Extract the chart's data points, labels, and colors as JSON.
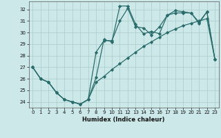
{
  "title": "",
  "xlabel": "Humidex (Indice chaleur)",
  "background_color": "#cde8e8",
  "grid_color": "#aacccc",
  "line_color": "#2a6b6b",
  "x": [
    0,
    1,
    2,
    3,
    4,
    5,
    6,
    7,
    8,
    9,
    10,
    11,
    12,
    13,
    14,
    15,
    16,
    17,
    18,
    19,
    20,
    21,
    22,
    23
  ],
  "line1": [
    27.0,
    26.0,
    25.7,
    24.8,
    24.2,
    24.0,
    23.8,
    24.2,
    26.1,
    29.4,
    29.2,
    32.3,
    32.3,
    30.7,
    29.9,
    30.1,
    29.9,
    31.5,
    31.7,
    31.7,
    31.7,
    30.9,
    31.8,
    27.7
  ],
  "line2": [
    27.0,
    26.0,
    25.7,
    24.8,
    24.2,
    24.0,
    23.8,
    24.2,
    28.3,
    29.3,
    29.3,
    31.0,
    32.1,
    30.5,
    30.4,
    29.8,
    30.5,
    31.5,
    31.9,
    31.8,
    31.7,
    30.8,
    31.8,
    27.7
  ],
  "line3": [
    27.0,
    26.0,
    25.7,
    24.8,
    24.2,
    24.0,
    23.8,
    24.2,
    25.7,
    26.2,
    26.8,
    27.3,
    27.8,
    28.3,
    28.8,
    29.2,
    29.6,
    30.0,
    30.3,
    30.6,
    30.8,
    31.0,
    31.2,
    27.7
  ],
  "ylim": [
    23.5,
    32.7
  ],
  "yticks": [
    24,
    25,
    26,
    27,
    28,
    29,
    30,
    31,
    32
  ],
  "xticks": [
    0,
    1,
    2,
    3,
    4,
    5,
    6,
    7,
    8,
    9,
    10,
    11,
    12,
    13,
    14,
    15,
    16,
    17,
    18,
    19,
    20,
    21,
    22,
    23
  ],
  "marker": "D",
  "markersize": 2.2,
  "linewidth": 0.9
}
